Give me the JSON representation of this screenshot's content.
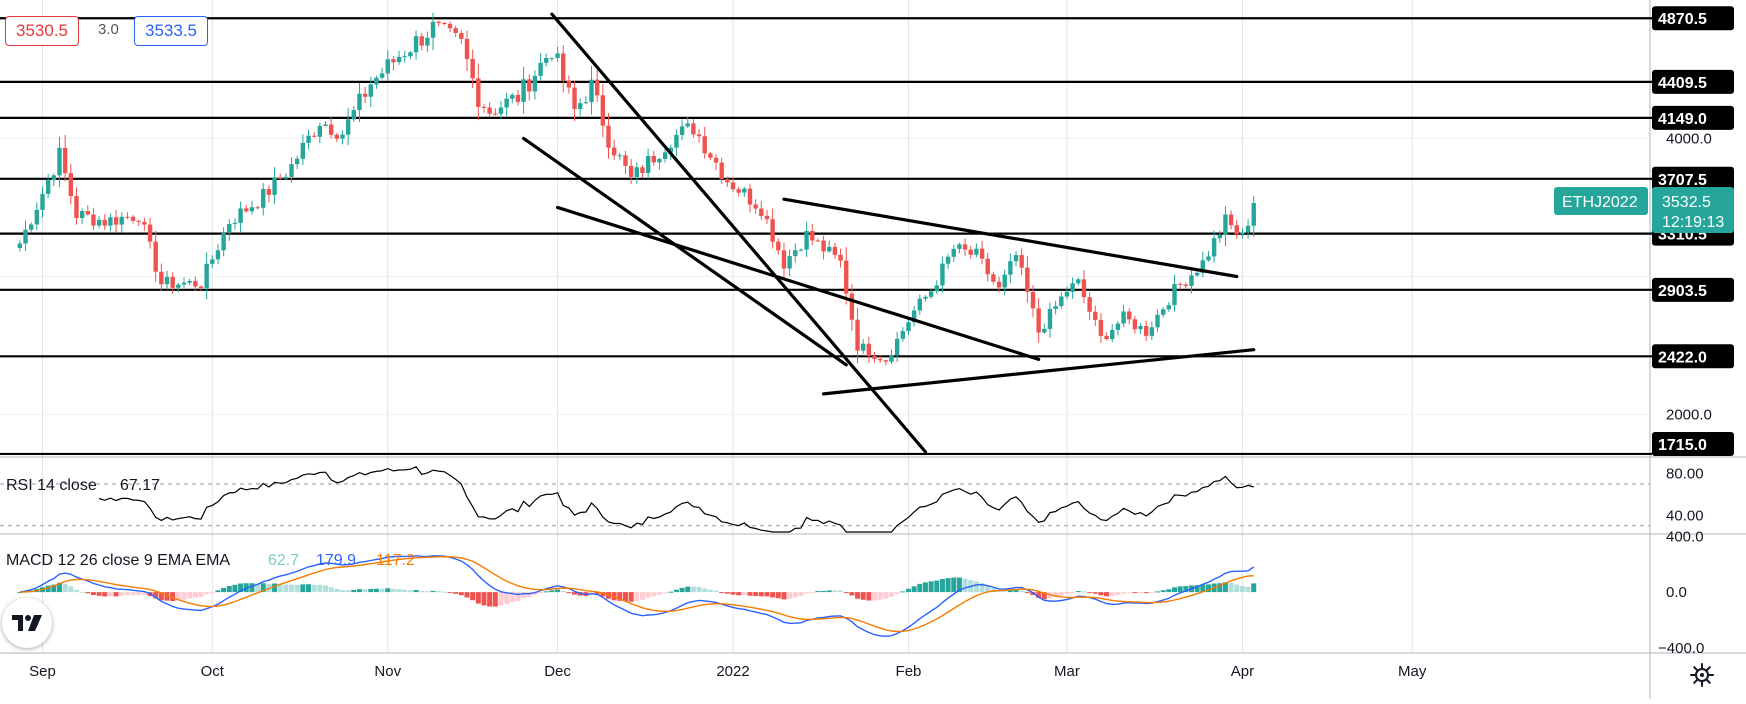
{
  "header": {
    "bid": "3530.5",
    "spread": "3.0",
    "ask": "3533.5"
  },
  "symbol_tag": {
    "name": "ETHJ2022",
    "price": "3532.5",
    "countdown": "12:19:13",
    "color": "#26a69a"
  },
  "colors": {
    "up": "#26a69a",
    "down": "#ef5350",
    "macd_line": "#2962ff",
    "signal_line": "#f57c00",
    "hist_up_strong": "#26a69a",
    "hist_up_weak": "#b2dfdb",
    "hist_down_strong": "#ef5350",
    "hist_down_weak": "#ffcdd2"
  },
  "chart_data": {
    "type": "candlestick",
    "y_axis_labels": [
      "4000.0",
      "2000.0"
    ],
    "ylim": [
      1700,
      4930
    ],
    "x_tick_labels": [
      {
        "label": "Sep",
        "date": "2021-09-01"
      },
      {
        "label": "Oct",
        "date": "2021-10-01"
      },
      {
        "label": "Nov",
        "date": "2021-11-01"
      },
      {
        "label": "Dec",
        "date": "2021-12-01"
      },
      {
        "label": "2022",
        "date": "2022-01-01"
      },
      {
        "label": "Feb",
        "date": "2022-02-01"
      },
      {
        "label": "Mar",
        "date": "2022-03-01"
      },
      {
        "label": "Apr",
        "date": "2022-04-01"
      },
      {
        "label": "May",
        "date": "2022-05-01"
      }
    ],
    "horizontal_levels": [
      {
        "value": 4870.5,
        "label": "4870.5"
      },
      {
        "value": 4409.5,
        "label": "4409.5"
      },
      {
        "value": 4149.0,
        "label": "4149.0"
      },
      {
        "value": 3707.5,
        "label": "3707.5"
      },
      {
        "value": 3310.5,
        "label": "3310.5"
      },
      {
        "value": 2903.5,
        "label": "2903.5"
      },
      {
        "value": 2422.0,
        "label": "2422.0"
      },
      {
        "value": 1715.0,
        "label": "1715.0"
      }
    ],
    "trendlines": [
      {
        "start": [
          "2021-11-30",
          4900
        ],
        "end": [
          "2022-02-04",
          1730
        ]
      },
      {
        "start": [
          "2021-11-25",
          4000
        ],
        "end": [
          "2022-01-21",
          2360
        ]
      },
      {
        "start": [
          "2022-01-17",
          2150
        ],
        "end": [
          "2022-04-03",
          2470
        ]
      },
      {
        "start": [
          "2022-01-10",
          3560
        ],
        "end": [
          "2022-03-31",
          3000
        ]
      },
      {
        "start": [
          "2021-12-01",
          3500
        ],
        "end": [
          "2022-02-24",
          2400
        ]
      }
    ],
    "price_anchors": [
      [
        "2021-08-28",
        3240
      ],
      [
        "2021-09-04",
        3880
      ],
      [
        "2021-09-07",
        3450
      ],
      [
        "2021-09-12",
        3400
      ],
      [
        "2021-09-18",
        3450
      ],
      [
        "2021-09-22",
        2950
      ],
      [
        "2021-09-29",
        2950
      ],
      [
        "2021-10-04",
        3400
      ],
      [
        "2021-10-10",
        3580
      ],
      [
        "2021-10-15",
        3800
      ],
      [
        "2021-10-20",
        4130
      ],
      [
        "2021-10-24",
        4040
      ],
      [
        "2021-10-29",
        4400
      ],
      [
        "2021-11-03",
        4600
      ],
      [
        "2021-11-09",
        4800
      ],
      [
        "2021-11-14",
        4680
      ],
      [
        "2021-11-17",
        4300
      ],
      [
        "2021-11-19",
        4200
      ],
      [
        "2021-11-24",
        4300
      ],
      [
        "2021-11-30",
        4650
      ],
      [
        "2021-12-04",
        4200
      ],
      [
        "2021-12-07",
        4380
      ],
      [
        "2021-12-10",
        4000
      ],
      [
        "2021-12-14",
        3700
      ],
      [
        "2021-12-21",
        4000
      ],
      [
        "2021-12-25",
        4080
      ],
      [
        "2021-12-31",
        3700
      ],
      [
        "2022-01-06",
        3500
      ],
      [
        "2022-01-10",
        3100
      ],
      [
        "2022-01-14",
        3300
      ],
      [
        "2022-01-20",
        3100
      ],
      [
        "2022-01-23",
        2500
      ],
      [
        "2022-01-28",
        2400
      ],
      [
        "2022-02-02",
        2750
      ],
      [
        "2022-02-05",
        2900
      ],
      [
        "2022-02-09",
        3200
      ],
      [
        "2022-02-13",
        3150
      ],
      [
        "2022-02-17",
        2900
      ],
      [
        "2022-02-20",
        3150
      ],
      [
        "2022-02-24",
        2600
      ],
      [
        "2022-03-01",
        2900
      ],
      [
        "2022-03-03",
        2950
      ],
      [
        "2022-03-07",
        2550
      ],
      [
        "2022-03-11",
        2700
      ],
      [
        "2022-03-15",
        2600
      ],
      [
        "2022-03-20",
        2900
      ],
      [
        "2022-03-25",
        3100
      ],
      [
        "2022-03-29",
        3400
      ],
      [
        "2022-04-01",
        3280
      ],
      [
        "2022-04-03",
        3532
      ]
    ],
    "rsi": {
      "label": "RSI 14 close",
      "value": "67.17",
      "axis_labels": [
        "80.00",
        "40.00"
      ],
      "ylim": [
        23,
        95
      ],
      "band": [
        70,
        30
      ]
    },
    "macd": {
      "label": "MACD 12 26 close 9 EMA EMA",
      "histogram_value": "62.7",
      "macd_value": "179.9",
      "signal_value": "117.2",
      "axis_labels": [
        "400.0",
        "0.0",
        "−400.0"
      ],
      "ylim": [
        -430,
        410
      ]
    }
  }
}
